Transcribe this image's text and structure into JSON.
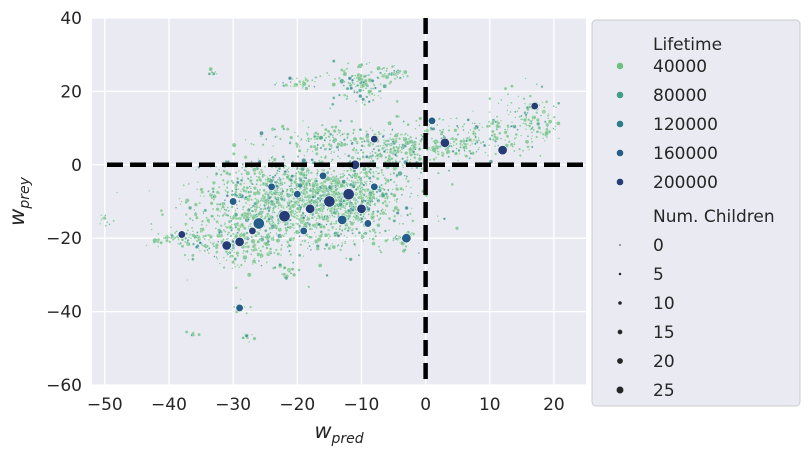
{
  "chart_data": {
    "type": "scatter",
    "title": "",
    "xlabel": "w",
    "xlabel_sub": "pred",
    "ylabel": "w",
    "ylabel_sub": "prey",
    "xlim": [
      -52,
      25
    ],
    "ylim": [
      -60,
      40
    ],
    "xticks": [
      -50,
      -40,
      -30,
      -20,
      -10,
      0,
      10,
      20
    ],
    "yticks": [
      -60,
      -40,
      -20,
      0,
      20,
      40
    ],
    "grid": true,
    "reference_lines": [
      {
        "orientation": "vertical",
        "value": 0,
        "style": "dashed",
        "color": "#000000"
      },
      {
        "orientation": "horizontal",
        "value": 0,
        "style": "dashed",
        "color": "#000000"
      }
    ],
    "legend": {
      "placement": "outside-right",
      "hue_title": "Lifetime",
      "hue_entries": [
        {
          "label": "40000",
          "color": "#6fbf83"
        },
        {
          "label": "80000",
          "color": "#3f9e84"
        },
        {
          "label": "120000",
          "color": "#2b7d87"
        },
        {
          "label": "160000",
          "color": "#255d8a"
        },
        {
          "label": "200000",
          "color": "#253c76"
        }
      ],
      "size_title": "Num. Children",
      "size_entries": [
        {
          "label": "0",
          "value": 0
        },
        {
          "label": "5",
          "value": 5
        },
        {
          "label": "10",
          "value": 10
        },
        {
          "label": "15",
          "value": 15
        },
        {
          "label": "20",
          "value": 20
        },
        {
          "label": "25",
          "value": 25
        }
      ]
    },
    "clusters": [
      {
        "cx": -20,
        "cy": -10,
        "sx": 7.5,
        "sy": 6,
        "weight": 0.42
      },
      {
        "cx": -12,
        "cy": -8,
        "sx": 4,
        "sy": 5,
        "weight": 0.14
      },
      {
        "cx": -29,
        "cy": -20,
        "sx": 4,
        "sy": 4,
        "weight": 0.08
      },
      {
        "cx": -5,
        "cy": 4,
        "sx": 3,
        "sy": 3,
        "weight": 0.06
      },
      {
        "cx": 5,
        "cy": 7,
        "sx": 5,
        "sy": 3,
        "weight": 0.07
      },
      {
        "cx": 16,
        "cy": 12,
        "sx": 3,
        "sy": 4,
        "weight": 0.04
      },
      {
        "cx": -10,
        "cy": 22,
        "sx": 2.5,
        "sy": 2.5,
        "weight": 0.04
      },
      {
        "cx": -5,
        "cy": 25,
        "sx": 1.5,
        "sy": 1,
        "weight": 0.01
      },
      {
        "cx": -20,
        "cy": 22,
        "sx": 2,
        "sy": 1,
        "weight": 0.01
      },
      {
        "cx": -15,
        "cy": 7,
        "sx": 5,
        "sy": 2,
        "weight": 0.04
      },
      {
        "cx": -38,
        "cy": -20,
        "sx": 2.5,
        "sy": 1.2,
        "weight": 0.02
      },
      {
        "cx": -4,
        "cy": -20,
        "sx": 1.2,
        "sy": 1.2,
        "weight": 0.01
      },
      {
        "cx": -29,
        "cy": -39,
        "sx": 0.6,
        "sy": 0.8,
        "weight": 0.004
      },
      {
        "cx": -28,
        "cy": -47,
        "sx": 0.6,
        "sy": 0.8,
        "weight": 0.003
      },
      {
        "cx": -50,
        "cy": -15,
        "sx": 0.6,
        "sy": 1.0,
        "weight": 0.003
      },
      {
        "cx": -33,
        "cy": 25,
        "sx": 0.5,
        "sy": 0.6,
        "weight": 0.002
      },
      {
        "cx": -36,
        "cy": -46,
        "sx": 0.6,
        "sy": 0.3,
        "weight": 0.002
      },
      {
        "cx": -22,
        "cy": -29,
        "sx": 1.0,
        "sy": 1.0,
        "weight": 0.006
      }
    ],
    "highlights": [
      {
        "x": -29,
        "y": -21,
        "lifetime": 200000,
        "children": 20
      },
      {
        "x": -31,
        "y": -22,
        "lifetime": 200000,
        "children": 20
      },
      {
        "x": -38,
        "y": -19,
        "lifetime": 200000,
        "children": 15
      },
      {
        "x": -26,
        "y": -16,
        "lifetime": 160000,
        "children": 25
      },
      {
        "x": -22,
        "y": -14,
        "lifetime": 200000,
        "children": 25
      },
      {
        "x": -18,
        "y": -12,
        "lifetime": 200000,
        "children": 20
      },
      {
        "x": -15,
        "y": -10,
        "lifetime": 200000,
        "children": 25
      },
      {
        "x": -12,
        "y": -8,
        "lifetime": 200000,
        "children": 25
      },
      {
        "x": -10,
        "y": -12,
        "lifetime": 200000,
        "children": 20
      },
      {
        "x": -13,
        "y": -15,
        "lifetime": 160000,
        "children": 20
      },
      {
        "x": -20,
        "y": -8,
        "lifetime": 160000,
        "children": 15
      },
      {
        "x": -24,
        "y": -6,
        "lifetime": 160000,
        "children": 15
      },
      {
        "x": -30,
        "y": -10,
        "lifetime": 160000,
        "children": 15
      },
      {
        "x": -8,
        "y": -6,
        "lifetime": 160000,
        "children": 15
      },
      {
        "x": -3,
        "y": -20,
        "lifetime": 160000,
        "children": 20
      },
      {
        "x": -29,
        "y": -39,
        "lifetime": 160000,
        "children": 15
      },
      {
        "x": -11,
        "y": 0,
        "lifetime": 200000,
        "children": 20
      },
      {
        "x": -8,
        "y": 7,
        "lifetime": 200000,
        "children": 15
      },
      {
        "x": 3,
        "y": 6,
        "lifetime": 200000,
        "children": 20
      },
      {
        "x": 1,
        "y": 12,
        "lifetime": 160000,
        "children": 15
      },
      {
        "x": 12,
        "y": 4,
        "lifetime": 200000,
        "children": 20
      },
      {
        "x": 17,
        "y": 16,
        "lifetime": 200000,
        "children": 15
      },
      {
        "x": -16,
        "y": -3,
        "lifetime": 160000,
        "children": 15
      },
      {
        "x": -27,
        "y": -18,
        "lifetime": 200000,
        "children": 15
      },
      {
        "x": -19,
        "y": -18,
        "lifetime": 160000,
        "children": 15
      },
      {
        "x": -9,
        "y": -16,
        "lifetime": 160000,
        "children": 15
      }
    ]
  }
}
